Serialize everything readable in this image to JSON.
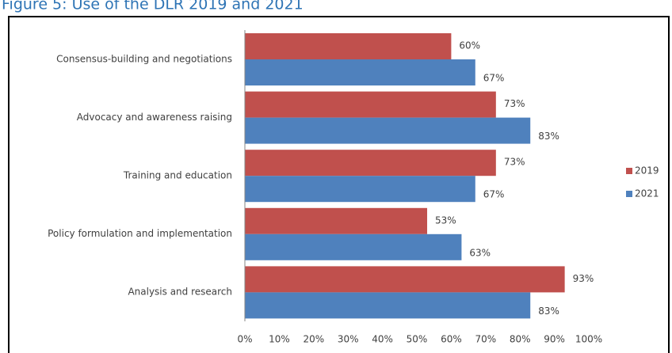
{
  "chart_data": {
    "type": "bar",
    "orientation": "horizontal",
    "title": "Figure 5: Use of the DLR 2019 and 2021",
    "categories": [
      "Consensus-building and negotiations",
      "Advocacy and awareness raising",
      "Training and education",
      "Policy formulation and implementation",
      "Analysis and research"
    ],
    "series": [
      {
        "name": "2019",
        "color": "#c0504d",
        "values": [
          60,
          73,
          73,
          53,
          93
        ],
        "value_labels": [
          "60%",
          "73%",
          "73%",
          "53%",
          "93%"
        ]
      },
      {
        "name": "2021",
        "color": "#4f81bd",
        "values": [
          67,
          83,
          67,
          63,
          83
        ],
        "value_labels": [
          "67%",
          "83%",
          "67%",
          "63%",
          "83%"
        ]
      }
    ],
    "xlim": [
      0,
      100
    ],
    "xticks": [
      {
        "value": 0,
        "label": "0%"
      },
      {
        "value": 10,
        "label": "10%"
      },
      {
        "value": 20,
        "label": "20%"
      },
      {
        "value": 30,
        "label": "30%"
      },
      {
        "value": 40,
        "label": "40%"
      },
      {
        "value": 50,
        "label": "50%"
      },
      {
        "value": 60,
        "label": "60%"
      },
      {
        "value": 70,
        "label": "70%"
      },
      {
        "value": 80,
        "label": "80%"
      },
      {
        "value": 90,
        "label": "90%"
      },
      {
        "value": 100,
        "label": "100%"
      }
    ],
    "legend": "right"
  }
}
